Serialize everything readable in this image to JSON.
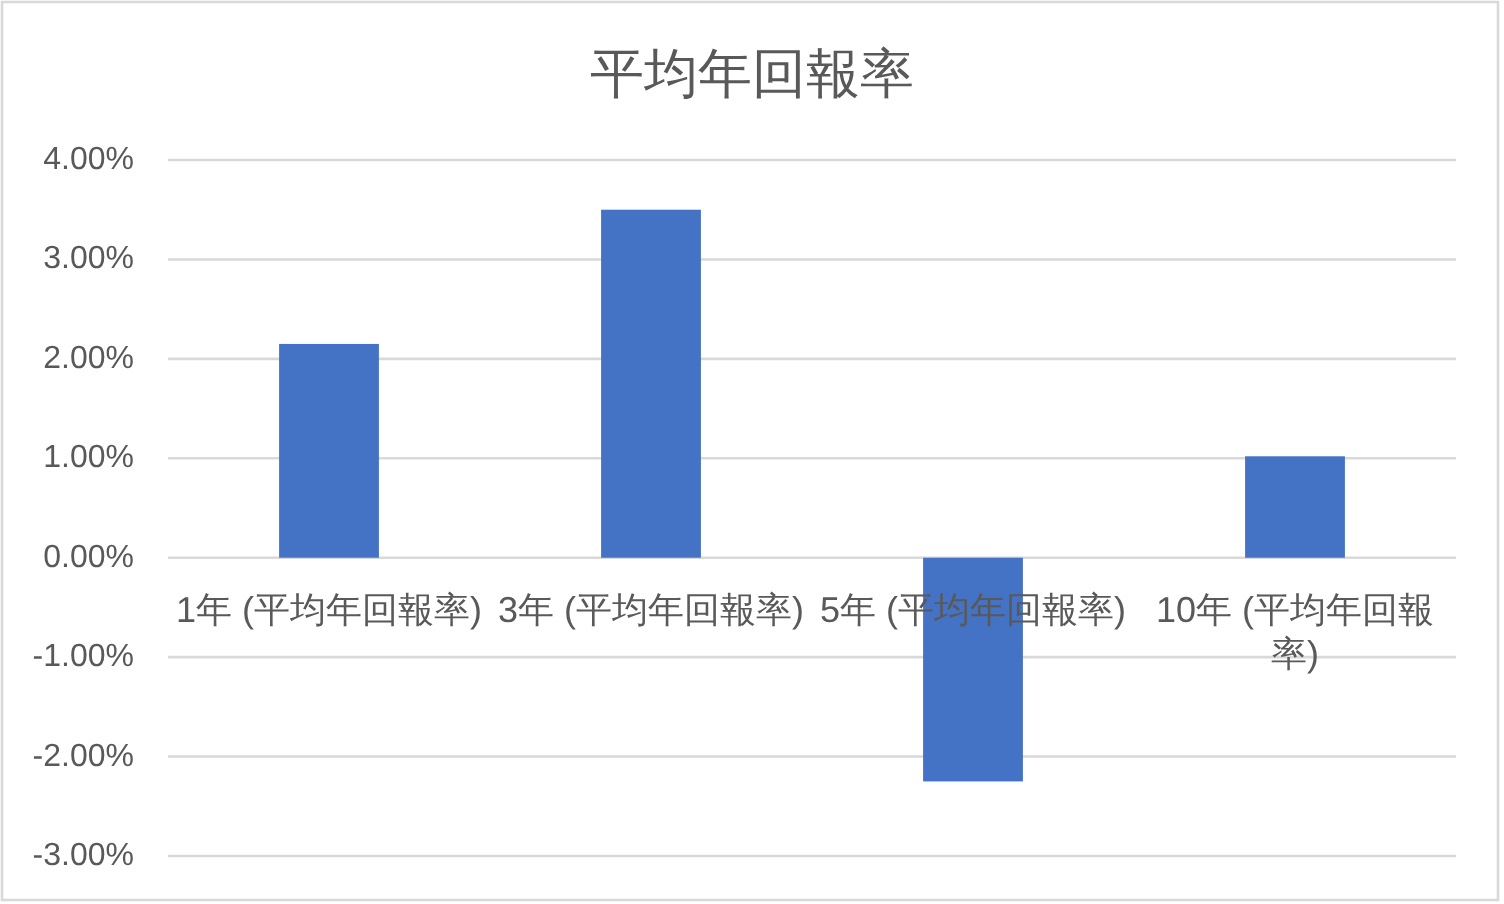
{
  "chart_data": {
    "type": "bar",
    "title": "平均年回報率",
    "categories": [
      "1年 (平均年回報率)",
      "3年 (平均年回報率)",
      "5年 (平均年回報率)",
      "10年 (平均年回報率)"
    ],
    "values": [
      2.15,
      3.5,
      -2.25,
      1.02
    ],
    "color": "#4472c4",
    "ylim": [
      -3,
      4
    ],
    "yticks": [
      {
        "value": -3,
        "label": "-3.00%"
      },
      {
        "value": -2,
        "label": "-2.00%"
      },
      {
        "value": -1,
        "label": "-1.00%"
      },
      {
        "value": 0,
        "label": "0.00%"
      },
      {
        "value": 1,
        "label": "1.00%"
      },
      {
        "value": 2,
        "label": "2.00%"
      },
      {
        "value": 3,
        "label": "3.00%"
      },
      {
        "value": 4,
        "label": "4.00%"
      }
    ],
    "grid": "y"
  }
}
